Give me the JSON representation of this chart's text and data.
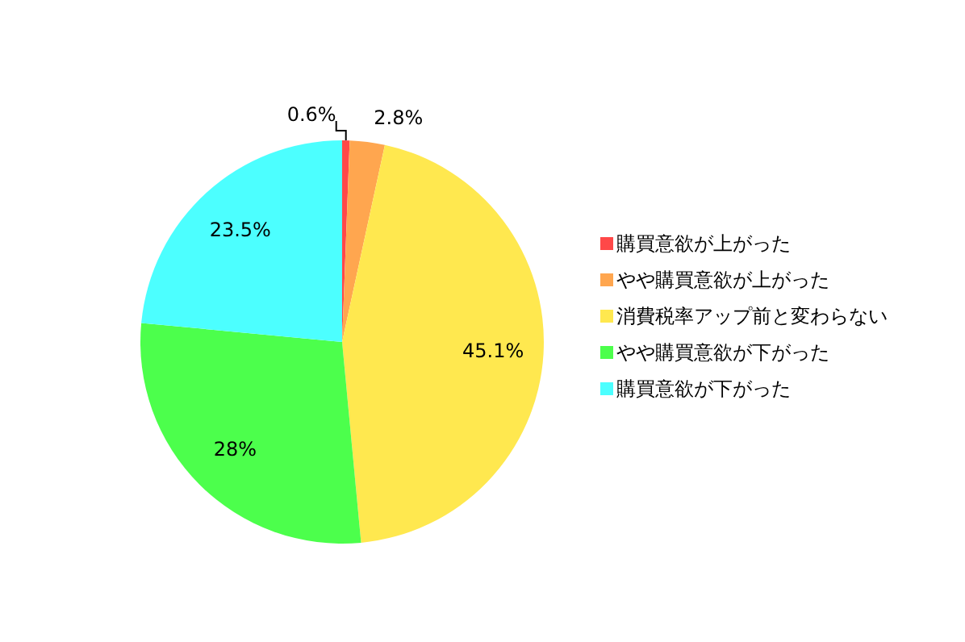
{
  "chart_data": {
    "type": "pie",
    "categories": [
      "購買意欲が上がった",
      "やや購買意欲が上がった",
      "消費税率アップ前と変わらない",
      "やや購買意欲が下がった",
      "購買意欲が下がった"
    ],
    "values": [
      0.6,
      2.8,
      45.1,
      28,
      23.5
    ],
    "colors": [
      "#ff4848",
      "#ffa64f",
      "#ffe84f",
      "#4cff4c",
      "#4cffff"
    ],
    "value_labels": [
      "0.6%",
      "2.8%",
      "45.1%",
      "28%",
      "23.5%"
    ],
    "legend": "right"
  }
}
